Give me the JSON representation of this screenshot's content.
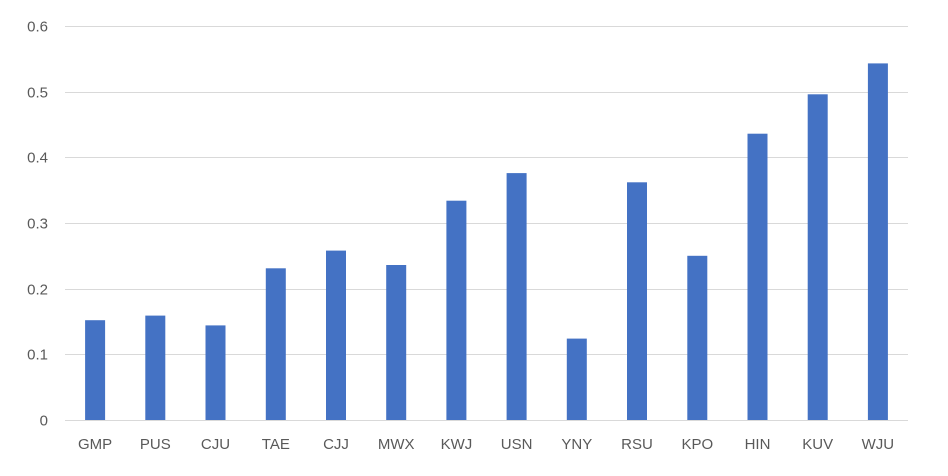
{
  "chart_data": {
    "type": "bar",
    "title": "",
    "xlabel": "",
    "ylabel": "",
    "categories": [
      "GMP",
      "PUS",
      "CJU",
      "TAE",
      "CJJ",
      "MWX",
      "KWJ",
      "USN",
      "YNY",
      "RSU",
      "KPO",
      "HIN",
      "KUV",
      "WJU"
    ],
    "values": [
      0.152,
      0.159,
      0.144,
      0.231,
      0.258,
      0.236,
      0.334,
      0.376,
      0.124,
      0.362,
      0.25,
      0.436,
      0.496,
      0.543
    ],
    "ylim": [
      0,
      0.6
    ],
    "yticks": [
      0,
      0.1,
      0.2,
      0.3,
      0.4,
      0.5,
      0.6
    ],
    "ytick_labels": [
      "0",
      "0.1",
      "0.2",
      "0.3",
      "0.4",
      "0.5",
      "0.6"
    ],
    "grid": true,
    "legend": "none",
    "bar_color": "#4472c4",
    "grid_color": "#d9d9d9",
    "label_color": "#595959"
  }
}
